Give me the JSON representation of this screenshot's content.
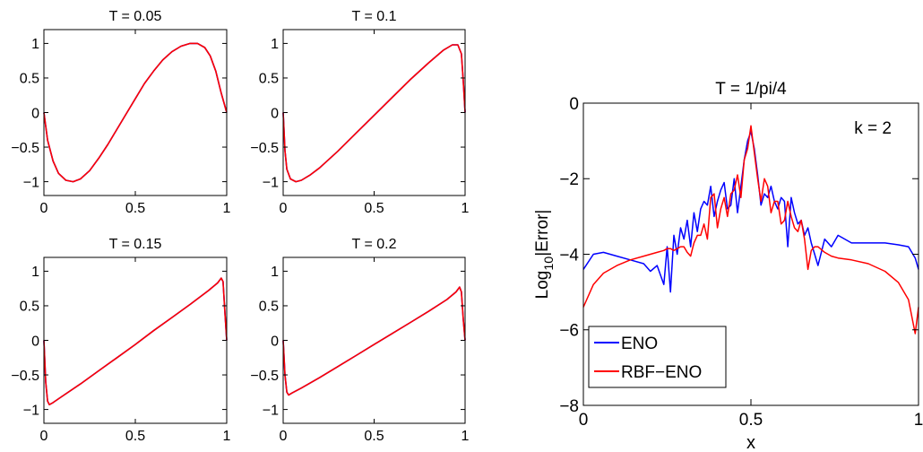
{
  "chart_data": [
    {
      "type": "line",
      "title": "T = 0.05",
      "xlabel": "",
      "ylabel": "",
      "xlim": [
        0,
        1
      ],
      "ylim": [
        -1.2,
        1.2
      ],
      "xticks": [
        0,
        0.5,
        1
      ],
      "xtick_labels": [
        "0",
        "0.5",
        "1"
      ],
      "yticks": [
        -1,
        -0.5,
        0,
        0.5,
        1
      ],
      "ytick_labels": [
        "−1",
        "−0.5",
        "0",
        "0.5",
        "1"
      ],
      "x": [
        0,
        0.02,
        0.05,
        0.08,
        0.12,
        0.16,
        0.2,
        0.25,
        0.3,
        0.35,
        0.4,
        0.45,
        0.5,
        0.55,
        0.6,
        0.65,
        0.7,
        0.75,
        0.8,
        0.84,
        0.88,
        0.91,
        0.94,
        0.97,
        1.0
      ],
      "series": [
        {
          "color": "#0000ff",
          "values": [
            0,
            -0.4,
            -0.7,
            -0.88,
            -0.98,
            -1.0,
            -0.96,
            -0.84,
            -0.66,
            -0.46,
            -0.24,
            -0.02,
            0.2,
            0.42,
            0.6,
            0.76,
            0.88,
            0.96,
            1.0,
            1.0,
            0.94,
            0.82,
            0.6,
            0.28,
            0
          ]
        },
        {
          "color": "#ff0000",
          "values": [
            0,
            -0.4,
            -0.7,
            -0.88,
            -0.98,
            -1.0,
            -0.96,
            -0.84,
            -0.66,
            -0.46,
            -0.24,
            -0.02,
            0.2,
            0.42,
            0.6,
            0.76,
            0.88,
            0.96,
            1.0,
            1.0,
            0.94,
            0.82,
            0.6,
            0.28,
            0
          ]
        }
      ]
    },
    {
      "type": "line",
      "title": "T = 0.1",
      "xlabel": "",
      "ylabel": "",
      "xlim": [
        0,
        1
      ],
      "ylim": [
        -1.2,
        1.2
      ],
      "xticks": [
        0,
        0.5,
        1
      ],
      "xtick_labels": [
        "0",
        "0.5",
        "1"
      ],
      "yticks": [
        -1,
        -0.5,
        0,
        0.5,
        1
      ],
      "ytick_labels": [
        "−1",
        "−0.5",
        "0",
        "0.5",
        "1"
      ],
      "x": [
        0,
        0.01,
        0.02,
        0.04,
        0.07,
        0.1,
        0.15,
        0.2,
        0.3,
        0.4,
        0.5,
        0.6,
        0.7,
        0.8,
        0.88,
        0.93,
        0.96,
        0.98,
        0.99,
        1.0
      ],
      "series": [
        {
          "color": "#0000ff",
          "values": [
            0,
            -0.55,
            -0.82,
            -0.96,
            -1.0,
            -0.98,
            -0.9,
            -0.8,
            -0.56,
            -0.3,
            -0.04,
            0.22,
            0.48,
            0.72,
            0.9,
            0.98,
            0.98,
            0.85,
            0.45,
            0
          ]
        },
        {
          "color": "#ff0000",
          "values": [
            0,
            -0.55,
            -0.82,
            -0.96,
            -1.0,
            -0.98,
            -0.9,
            -0.8,
            -0.56,
            -0.3,
            -0.04,
            0.22,
            0.48,
            0.72,
            0.9,
            0.98,
            0.98,
            0.85,
            0.45,
            0
          ]
        }
      ]
    },
    {
      "type": "line",
      "title": "T = 0.15",
      "xlabel": "",
      "ylabel": "",
      "xlim": [
        0,
        1
      ],
      "ylim": [
        -1.2,
        1.2
      ],
      "xticks": [
        0,
        0.5,
        1
      ],
      "xtick_labels": [
        "0",
        "0.5",
        "1"
      ],
      "yticks": [
        -1,
        -0.5,
        0,
        0.5,
        1
      ],
      "ytick_labels": [
        "−1",
        "−0.5",
        "0",
        "0.5",
        "1"
      ],
      "x": [
        0,
        0.01,
        0.02,
        0.03,
        0.05,
        0.1,
        0.2,
        0.3,
        0.4,
        0.5,
        0.6,
        0.7,
        0.8,
        0.9,
        0.95,
        0.97,
        0.98,
        0.99,
        1.0
      ],
      "series": [
        {
          "color": "#0000ff",
          "values": [
            0,
            -0.6,
            -0.88,
            -0.93,
            -0.9,
            -0.81,
            -0.63,
            -0.44,
            -0.25,
            -0.06,
            0.14,
            0.33,
            0.52,
            0.72,
            0.83,
            0.9,
            0.85,
            0.4,
            0
          ]
        },
        {
          "color": "#ff0000",
          "values": [
            0,
            -0.6,
            -0.88,
            -0.93,
            -0.9,
            -0.81,
            -0.63,
            -0.44,
            -0.25,
            -0.06,
            0.14,
            0.33,
            0.52,
            0.72,
            0.83,
            0.9,
            0.85,
            0.4,
            0
          ]
        }
      ]
    },
    {
      "type": "line",
      "title": "T = 0.2",
      "xlabel": "",
      "ylabel": "",
      "xlim": [
        0,
        1
      ],
      "ylim": [
        -1.2,
        1.2
      ],
      "xticks": [
        0,
        0.5,
        1
      ],
      "xtick_labels": [
        "0",
        "0.5",
        "1"
      ],
      "yticks": [
        -1,
        -0.5,
        0,
        0.5,
        1
      ],
      "ytick_labels": [
        "−1",
        "−0.5",
        "0",
        "0.5",
        "1"
      ],
      "x": [
        0,
        0.01,
        0.02,
        0.03,
        0.05,
        0.1,
        0.2,
        0.3,
        0.4,
        0.5,
        0.6,
        0.7,
        0.8,
        0.9,
        0.95,
        0.97,
        0.98,
        0.99,
        1.0
      ],
      "series": [
        {
          "color": "#0000ff",
          "values": [
            0,
            -0.5,
            -0.75,
            -0.79,
            -0.76,
            -0.69,
            -0.54,
            -0.38,
            -0.22,
            -0.06,
            0.1,
            0.26,
            0.42,
            0.59,
            0.7,
            0.77,
            0.7,
            0.3,
            0
          ]
        },
        {
          "color": "#ff0000",
          "values": [
            0,
            -0.5,
            -0.75,
            -0.79,
            -0.76,
            -0.69,
            -0.54,
            -0.38,
            -0.22,
            -0.06,
            0.1,
            0.26,
            0.42,
            0.59,
            0.7,
            0.77,
            0.7,
            0.3,
            0
          ]
        }
      ]
    },
    {
      "type": "line",
      "title": "T = 1/pi/4",
      "xlabel": "x",
      "ylabel": "Log",
      "ylabel_subscript": "10",
      "ylabel_suffix": "|Error|",
      "annotation": "k = 2",
      "xlim": [
        0,
        1
      ],
      "ylim": [
        -8,
        0
      ],
      "xticks": [
        0,
        0.5,
        1
      ],
      "xtick_labels": [
        "0",
        "0.5",
        "1"
      ],
      "yticks": [
        -8,
        -6,
        -4,
        -2,
        0
      ],
      "ytick_labels": [
        "−8",
        "−6",
        "−4",
        "−2",
        "0"
      ],
      "legend_position": "bottom-left",
      "x": [
        0,
        0.03,
        0.06,
        0.1,
        0.14,
        0.18,
        0.2,
        0.22,
        0.24,
        0.25,
        0.26,
        0.27,
        0.28,
        0.29,
        0.3,
        0.31,
        0.32,
        0.33,
        0.34,
        0.35,
        0.36,
        0.37,
        0.38,
        0.39,
        0.4,
        0.41,
        0.42,
        0.43,
        0.44,
        0.45,
        0.46,
        0.47,
        0.48,
        0.49,
        0.5,
        0.51,
        0.52,
        0.53,
        0.54,
        0.55,
        0.56,
        0.57,
        0.58,
        0.59,
        0.6,
        0.61,
        0.62,
        0.63,
        0.64,
        0.65,
        0.66,
        0.67,
        0.68,
        0.69,
        0.7,
        0.72,
        0.74,
        0.76,
        0.8,
        0.85,
        0.9,
        0.94,
        0.97,
        0.99,
        1.0
      ],
      "series": [
        {
          "name": "ENO",
          "color": "#0000ff",
          "values": [
            -4.4,
            -4.0,
            -3.95,
            -4.05,
            -4.15,
            -4.25,
            -4.45,
            -4.3,
            -4.8,
            -3.8,
            -5.0,
            -3.5,
            -4.0,
            -3.3,
            -3.6,
            -3.1,
            -3.8,
            -2.9,
            -3.4,
            -2.8,
            -2.6,
            -2.7,
            -2.2,
            -3.0,
            -2.6,
            -2.3,
            -2.1,
            -2.8,
            -2.7,
            -2.0,
            -2.9,
            -2.2,
            -1.5,
            -1.0,
            -0.75,
            -1.2,
            -1.9,
            -2.7,
            -2.4,
            -2.5,
            -2.2,
            -2.6,
            -2.8,
            -2.5,
            -2.6,
            -3.8,
            -2.5,
            -2.9,
            -3.2,
            -3.1,
            -3.5,
            -3.3,
            -3.7,
            -4.0,
            -4.3,
            -3.6,
            -3.8,
            -3.5,
            -3.7,
            -3.7,
            -3.7,
            -3.75,
            -3.8,
            -4.1,
            -4.4
          ]
        },
        {
          "name": "RBF−ENO",
          "color": "#ff0000",
          "values": [
            -5.4,
            -4.8,
            -4.5,
            -4.3,
            -4.15,
            -4.05,
            -4.0,
            -3.95,
            -3.9,
            -3.85,
            -3.85,
            -3.9,
            -3.85,
            -3.8,
            -3.8,
            -3.95,
            -4.05,
            -3.7,
            -3.5,
            -3.5,
            -3.2,
            -3.6,
            -2.5,
            -2.4,
            -3.3,
            -2.8,
            -2.5,
            -3.0,
            -2.4,
            -2.3,
            -1.9,
            -2.5,
            -1.5,
            -1.2,
            -0.6,
            -1.3,
            -2.0,
            -2.6,
            -2.0,
            -2.2,
            -2.9,
            -2.6,
            -2.6,
            -3.2,
            -3.1,
            -2.6,
            -3.0,
            -3.3,
            -3.4,
            -3.1,
            -3.6,
            -4.4,
            -3.9,
            -3.8,
            -3.8,
            -3.95,
            -4.05,
            -4.1,
            -4.15,
            -4.25,
            -4.45,
            -4.75,
            -5.2,
            -6.1,
            -5.4
          ]
        }
      ]
    }
  ]
}
